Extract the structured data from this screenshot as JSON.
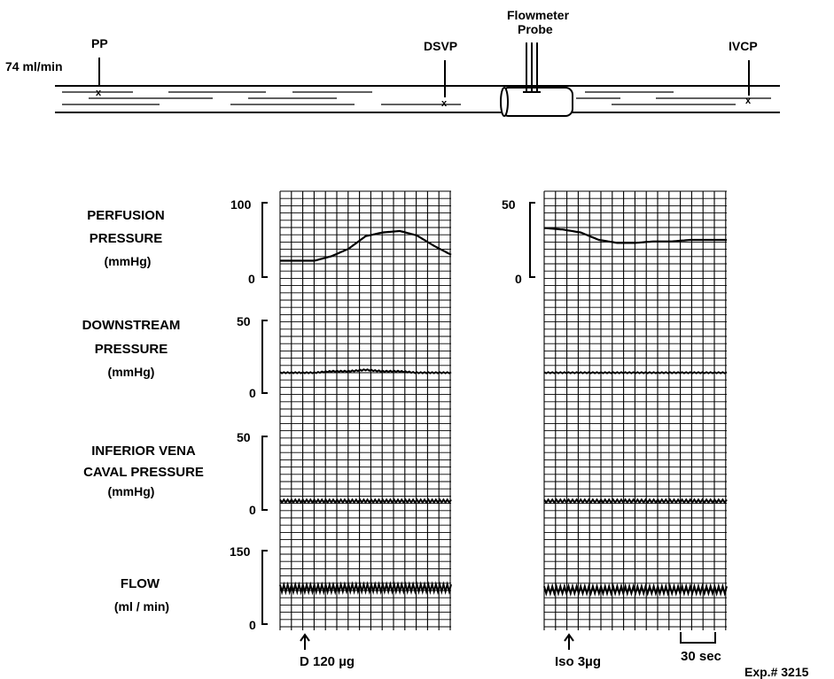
{
  "diagram": {
    "flow_rate": "74 ml/min",
    "pp": "PP",
    "dsvp": "DSVP",
    "ivcp": "IVCP",
    "flowmeter_line1": "Flowmeter",
    "flowmeter_line2": "Probe",
    "marker": "x"
  },
  "panels": {
    "perfusion": {
      "label_lines": [
        "PERFUSION",
        "PRESSURE",
        "(mmHg)"
      ],
      "ticks": [
        "100",
        "0"
      ],
      "tick_right": [
        "50",
        "0"
      ]
    },
    "downstream": {
      "label_lines": [
        "DOWNSTREAM",
        "PRESSURE",
        "(mmHg)"
      ],
      "ticks": [
        "50",
        "0"
      ]
    },
    "ivc": {
      "label_lines": [
        "INFERIOR VENA",
        "CAVAL PRESSURE",
        "(mmHg)"
      ],
      "ticks": [
        "50",
        "0"
      ]
    },
    "flow": {
      "label_lines": [
        "FLOW",
        "(ml / min)"
      ],
      "ticks": [
        "150",
        "0"
      ]
    }
  },
  "annotations": {
    "left_dose": "D  120 µg",
    "right_dose": "Iso 3µg",
    "time_scale": "30 sec",
    "exp": "Exp.# 3215"
  },
  "chart_data": [
    {
      "type": "line",
      "title": "",
      "panel": "left (D 120 µg)",
      "x_unit": "sec",
      "x": [
        0,
        10,
        20,
        30,
        40,
        50,
        60,
        70,
        80,
        90,
        100
      ],
      "series": [
        {
          "name": "PERFUSION PRESSURE (mmHg)",
          "ylim": [
            0,
            100
          ],
          "values": [
            22,
            22,
            22,
            28,
            38,
            55,
            60,
            62,
            56,
            42,
            30
          ]
        },
        {
          "name": "DOWNSTREAM PRESSURE (mmHg)",
          "ylim": [
            0,
            50
          ],
          "values": [
            14,
            14,
            14,
            15,
            15,
            16,
            15,
            15,
            14,
            14,
            14
          ]
        },
        {
          "name": "INFERIOR VENA CAVAL PRESSURE (mmHg)",
          "ylim": [
            0,
            50
          ],
          "values": [
            6,
            6,
            6,
            6,
            6,
            6,
            6,
            6,
            6,
            6,
            6
          ]
        },
        {
          "name": "FLOW (ml / min)",
          "ylim": [
            0,
            150
          ],
          "values": [
            73,
            73,
            73,
            73,
            74,
            74,
            74,
            74,
            74,
            74,
            74
          ]
        }
      ]
    },
    {
      "type": "line",
      "title": "",
      "panel": "right (Iso 3µg)",
      "x_unit": "sec",
      "x": [
        0,
        10,
        20,
        30,
        40,
        50,
        60,
        70,
        80,
        90,
        100
      ],
      "series": [
        {
          "name": "PERFUSION PRESSURE (mmHg)",
          "ylim": [
            0,
            50
          ],
          "values": [
            33,
            32,
            30,
            25,
            23,
            23,
            24,
            24,
            25,
            25,
            25
          ]
        },
        {
          "name": "DOWNSTREAM PRESSURE (mmHg)",
          "ylim": [
            0,
            50
          ],
          "values": [
            14,
            14,
            14,
            14,
            14,
            14,
            14,
            14,
            14,
            14,
            14
          ]
        },
        {
          "name": "INFERIOR VENA CAVAL PRESSURE (mmHg)",
          "ylim": [
            0,
            50
          ],
          "values": [
            6,
            6,
            6,
            6,
            6,
            6,
            6,
            6,
            6,
            6,
            6
          ]
        },
        {
          "name": "FLOW (ml / min)",
          "ylim": [
            0,
            150
          ],
          "values": [
            70,
            70,
            70,
            70,
            70,
            70,
            70,
            70,
            70,
            70,
            70
          ]
        }
      ]
    }
  ]
}
